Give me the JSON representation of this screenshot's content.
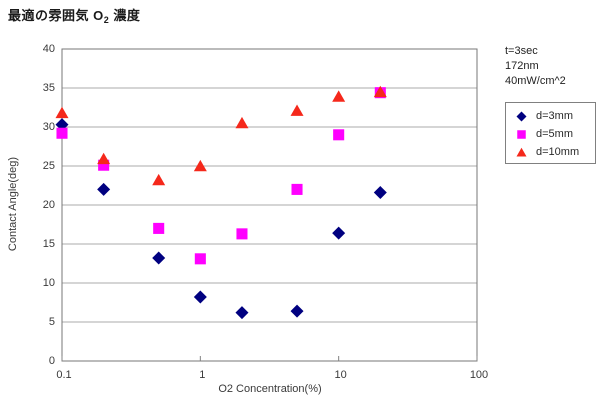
{
  "title": {
    "prefix": "最適の雰囲気 O",
    "subscript": "2",
    "suffix": " 濃度"
  },
  "annotation": {
    "line1": "t=3sec",
    "line2": "172nm",
    "line3": "40mW/cm^2"
  },
  "chart_data": {
    "type": "scatter",
    "title": "最適の雰囲気 O2 濃度",
    "xlabel": "O2 Concentration(%)",
    "ylabel": "Contact Angle(deg)",
    "x_scale": "log",
    "xlim": [
      0.1,
      100
    ],
    "ylim": [
      0,
      40
    ],
    "x_ticks": [
      0.1,
      1,
      10,
      100
    ],
    "x_tick_labels": [
      "0.1",
      "1",
      "10",
      "100"
    ],
    "y_ticks": [
      0,
      5,
      10,
      15,
      20,
      25,
      30,
      35,
      40
    ],
    "grid": true,
    "legend_position": "right-outside",
    "x": [
      0.1,
      0.2,
      0.5,
      1,
      2,
      5,
      10,
      20
    ],
    "series": [
      {
        "name": "d=3mm",
        "marker": "diamond",
        "color": "#000080",
        "values": [
          30.3,
          22.0,
          13.2,
          8.2,
          6.2,
          6.4,
          16.4,
          21.6
        ]
      },
      {
        "name": "d=5mm",
        "marker": "square",
        "color": "#FF00FF",
        "values": [
          29.2,
          25.1,
          17.0,
          13.1,
          16.3,
          22.0,
          29.0,
          34.4
        ]
      },
      {
        "name": "d=10mm",
        "marker": "triangle",
        "color": "#F5281B",
        "values": [
          31.8,
          25.9,
          23.2,
          25.0,
          30.5,
          32.1,
          33.9,
          34.5
        ]
      }
    ]
  },
  "colors": {
    "background": "#FFFFFF",
    "plot_background": "#FFFFFF",
    "gridline": "#ABABAB",
    "plot_border": "#777777",
    "tick": "#808080",
    "text": "#3A3A3A"
  }
}
